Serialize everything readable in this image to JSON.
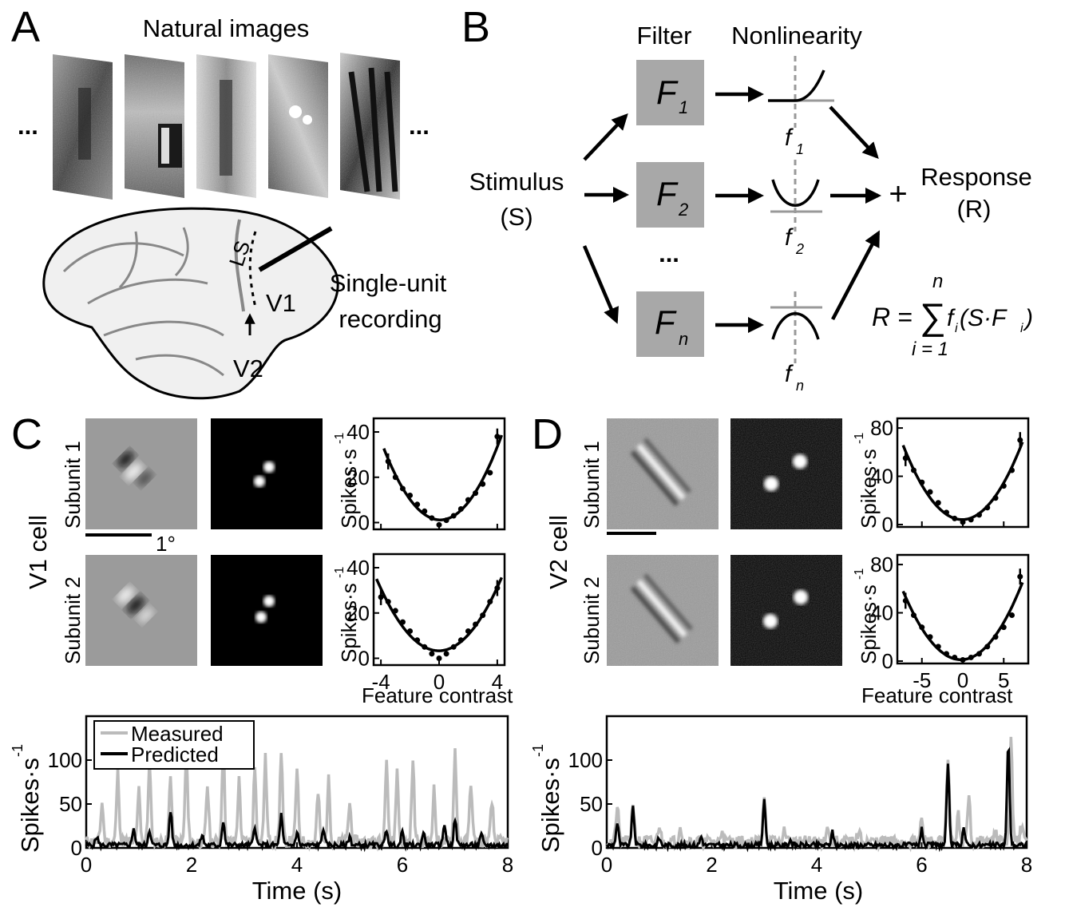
{
  "panels": {
    "a": {
      "label": "A",
      "title": "Natural images",
      "ellipsis_left": "...",
      "ellipsis_right": "...",
      "sulcus": "LS",
      "area_v1": "V1",
      "area_v2": "V2",
      "recording_line1": "Single-unit",
      "recording_line2": "recording"
    },
    "b": {
      "label": "B",
      "header_filter": "Filter",
      "header_nonlinearity": "Nonlinearity",
      "stimulus_line1": "Stimulus",
      "stimulus_line2": "(S)",
      "response_line1": "Response",
      "response_line2": "(R)",
      "plus": "+",
      "dots": "...",
      "filters": [
        {
          "name": "F",
          "sub": "1"
        },
        {
          "name": "F",
          "sub": "2"
        },
        {
          "name": "F",
          "sub": "n"
        }
      ],
      "nonlin": [
        {
          "name": "f",
          "sub": "1"
        },
        {
          "name": "f",
          "sub": "2"
        },
        {
          "name": "f",
          "sub": "n"
        }
      ],
      "eq_lhs": "R =",
      "eq_sigma": "∑",
      "eq_top": "n",
      "eq_bottom": "i = 1",
      "eq_body_f": "f",
      "eq_body_i": "i",
      "eq_body_open": "(S·F",
      "eq_body_i2": "i",
      "eq_body_close": ")"
    },
    "c": {
      "label": "C",
      "cell": "V1 cell",
      "subunit1": "Subunit 1",
      "subunit2": "Subunit 2",
      "scalebar": "1°",
      "ylabel": "Spikes·s",
      "ylabel_sup": "-1",
      "xlabel": "Feature contrast"
    },
    "d": {
      "label": "D",
      "cell": "V2 cell",
      "subunit1": "Subunit 1",
      "subunit2": "Subunit 2",
      "ylabel": "Spikes·s",
      "ylabel_sup": "-1",
      "xlabel": "Feature contrast"
    },
    "e": {
      "ylabel": "Spikes·s",
      "ylabel_sup": "-1",
      "xlabel": "Time (s)",
      "legend": [
        "Measured",
        "Predicted"
      ]
    },
    "f": {
      "ylabel": "Spikes·s",
      "ylabel_sup": "-1",
      "xlabel": "Time (s)"
    }
  },
  "chart_data": [
    {
      "type": "scatter",
      "panel": "C-subunit-1",
      "xlim": [
        -4.5,
        4.5
      ],
      "ylim": [
        -3,
        46
      ],
      "xticks": [
        -4,
        0,
        4
      ],
      "yticks": [
        0,
        20,
        40
      ],
      "x": [
        -3.5,
        -3,
        -2.5,
        -2,
        -1.5,
        -1,
        -0.5,
        0,
        0.5,
        1,
        1.5,
        2,
        2.5,
        3,
        3.5,
        4
      ],
      "y": [
        27,
        20,
        15,
        12,
        8,
        5,
        2,
        -1,
        1,
        3,
        6,
        10,
        13,
        17,
        22,
        38
      ],
      "fit": "quadratic"
    },
    {
      "type": "scatter",
      "panel": "C-subunit-2",
      "xlim": [
        -4.5,
        4.5
      ],
      "ylim": [
        -3,
        46
      ],
      "xticks": [
        -4,
        0,
        4
      ],
      "yticks": [
        0,
        20,
        40
      ],
      "xticklabels": [
        "-4",
        "0",
        "4"
      ],
      "x": [
        -4,
        -3.5,
        -3,
        -2.5,
        -2,
        -1.5,
        -1,
        -0.5,
        0,
        0.5,
        1,
        1.5,
        2,
        2.5,
        3,
        3.5,
        4
      ],
      "y": [
        27,
        25,
        21,
        16,
        12,
        8,
        5,
        2,
        0,
        2,
        5,
        8,
        12,
        15,
        19,
        25,
        31
      ],
      "fit": "quadratic"
    },
    {
      "type": "scatter",
      "panel": "D-subunit-1",
      "xlim": [
        -8,
        8
      ],
      "ylim": [
        -2,
        88
      ],
      "xticks": [
        -5,
        0,
        5
      ],
      "yticks": [
        0,
        40,
        80
      ],
      "x": [
        -7,
        -6,
        -5,
        -4,
        -3,
        -2,
        -1,
        0,
        1,
        2,
        3,
        4,
        5,
        6,
        7
      ],
      "y": [
        55,
        45,
        35,
        27,
        18,
        10,
        5,
        2,
        4,
        8,
        14,
        22,
        32,
        45,
        70
      ],
      "fit": "quadratic"
    },
    {
      "type": "scatter",
      "panel": "D-subunit-2",
      "xlim": [
        -8,
        8
      ],
      "ylim": [
        -2,
        88
      ],
      "xticks": [
        -5,
        0,
        5
      ],
      "yticks": [
        0,
        40,
        80
      ],
      "xticklabels": [
        "-5",
        "0",
        "5"
      ],
      "x": [
        -7,
        -6,
        -5,
        -4,
        -3,
        -2,
        -1,
        0,
        1,
        2,
        3,
        4,
        5,
        6,
        7
      ],
      "y": [
        50,
        38,
        28,
        20,
        12,
        6,
        3,
        1,
        3,
        6,
        12,
        20,
        28,
        38,
        70
      ],
      "fit": "quadratic"
    },
    {
      "type": "line",
      "panel": "E",
      "xlim": [
        0,
        8
      ],
      "ylim": [
        0,
        150
      ],
      "xticks": [
        0,
        2,
        4,
        6,
        8
      ],
      "yticks": [
        0,
        50,
        100
      ],
      "series": [
        {
          "name": "Measured",
          "color": "#bbbbbb",
          "seed": 11,
          "peaks": [
            [
              0.3,
              45
            ],
            [
              0.6,
              80
            ],
            [
              1.0,
              60
            ],
            [
              1.2,
              90
            ],
            [
              1.6,
              75
            ],
            [
              1.9,
              100
            ],
            [
              2.3,
              65
            ],
            [
              2.6,
              110
            ],
            [
              2.9,
              70
            ],
            [
              3.2,
              85
            ],
            [
              3.4,
              95
            ],
            [
              3.7,
              100
            ],
            [
              4.0,
              80
            ],
            [
              4.4,
              55
            ],
            [
              4.6,
              70
            ],
            [
              5.0,
              45
            ],
            [
              5.7,
              100
            ],
            [
              5.9,
              80
            ],
            [
              6.2,
              90
            ],
            [
              6.6,
              60
            ],
            [
              7.0,
              105
            ],
            [
              7.3,
              70
            ],
            [
              7.7,
              45
            ]
          ]
        },
        {
          "name": "Predicted",
          "color": "#000000",
          "seed": 5,
          "peaks": [
            [
              0.2,
              10
            ],
            [
              0.9,
              20
            ],
            [
              1.2,
              18
            ],
            [
              1.6,
              40
            ],
            [
              2.2,
              12
            ],
            [
              2.6,
              28
            ],
            [
              3.2,
              22
            ],
            [
              3.7,
              35
            ],
            [
              4.0,
              15
            ],
            [
              4.5,
              20
            ],
            [
              5.0,
              10
            ],
            [
              5.7,
              18
            ],
            [
              6.0,
              15
            ],
            [
              6.4,
              15
            ],
            [
              6.8,
              25
            ],
            [
              7.0,
              30
            ],
            [
              7.5,
              12
            ]
          ]
        }
      ]
    },
    {
      "type": "line",
      "panel": "F",
      "xlim": [
        0,
        8
      ],
      "ylim": [
        0,
        150
      ],
      "xticks": [
        0,
        2,
        4,
        6,
        8
      ],
      "yticks": [
        0,
        50,
        100
      ],
      "series": [
        {
          "name": "Measured",
          "color": "#bbbbbb",
          "seed": 21,
          "peaks": [
            [
              0.2,
              40
            ],
            [
              0.5,
              45
            ],
            [
              1.0,
              20
            ],
            [
              1.4,
              20
            ],
            [
              2.2,
              15
            ],
            [
              3.0,
              55
            ],
            [
              3.4,
              15
            ],
            [
              4.2,
              20
            ],
            [
              4.8,
              12
            ],
            [
              6.0,
              25
            ],
            [
              6.5,
              100
            ],
            [
              6.7,
              30
            ],
            [
              6.9,
              50
            ],
            [
              7.4,
              15
            ],
            [
              7.7,
              120
            ],
            [
              7.9,
              20
            ]
          ]
        },
        {
          "name": "Predicted",
          "color": "#000000",
          "seed": 9,
          "peaks": [
            [
              0.2,
              25
            ],
            [
              0.5,
              42
            ],
            [
              1.0,
              8
            ],
            [
              1.8,
              10
            ],
            [
              3.0,
              50
            ],
            [
              3.5,
              6
            ],
            [
              4.3,
              15
            ],
            [
              6.0,
              18
            ],
            [
              6.5,
              90
            ],
            [
              6.8,
              20
            ],
            [
              7.65,
              115
            ]
          ]
        }
      ]
    }
  ]
}
